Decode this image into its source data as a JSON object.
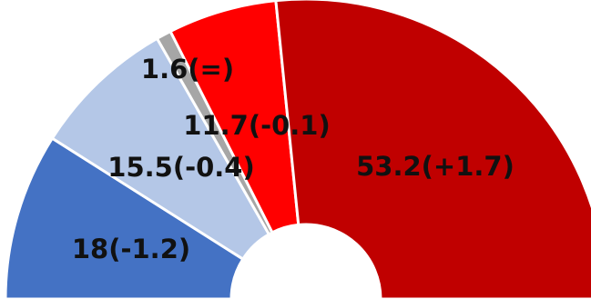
{
  "chart_data": {
    "type": "pie",
    "subtype": "semicircle-donut",
    "title": "",
    "legend": "none",
    "categories": [
      "",
      "",
      "",
      "",
      ""
    ],
    "values": [
      18,
      15.5,
      1.6,
      11.7,
      53.2
    ],
    "data_labels": [
      "18(-1.2)",
      "15.5(-0.4)",
      "1.6(=)",
      "11.7(-0.1)",
      "53.2(+1.7)"
    ],
    "colors": [
      "#4472c4",
      "#b4c7e7",
      "#a6a6a6",
      "#ff0000",
      "#c00000"
    ]
  }
}
